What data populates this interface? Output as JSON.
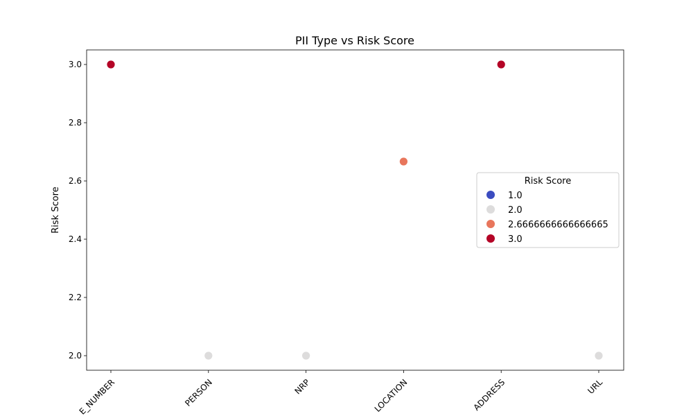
{
  "chart_data": {
    "type": "scatter",
    "title": "PII Type vs Risk Score",
    "xlabel": "",
    "ylabel": "Risk Score",
    "categories": [
      "E_NUMBER",
      "PERSON",
      "NRP",
      "LOCATION",
      "ADDRESS",
      "URL"
    ],
    "values": [
      3.0,
      2.0,
      2.0,
      2.6666666666666665,
      3.0,
      2.0
    ],
    "ylim": [
      1.95,
      3.05
    ],
    "yticks": [
      "2.0",
      "2.2",
      "2.4",
      "2.6",
      "2.8",
      "3.0"
    ],
    "grid": false,
    "legend": {
      "title": "Risk Score",
      "placement": "center-right",
      "entries": [
        {
          "label": "1.0",
          "value": 1.0,
          "color": "#3b4cc0"
        },
        {
          "label": "2.0",
          "value": 2.0,
          "color": "#dddcdc"
        },
        {
          "label": "2.6666666666666665",
          "value": 2.6666666666666665,
          "color": "#e8765c"
        },
        {
          "label": "3.0",
          "value": 3.0,
          "color": "#b40426"
        }
      ]
    }
  }
}
